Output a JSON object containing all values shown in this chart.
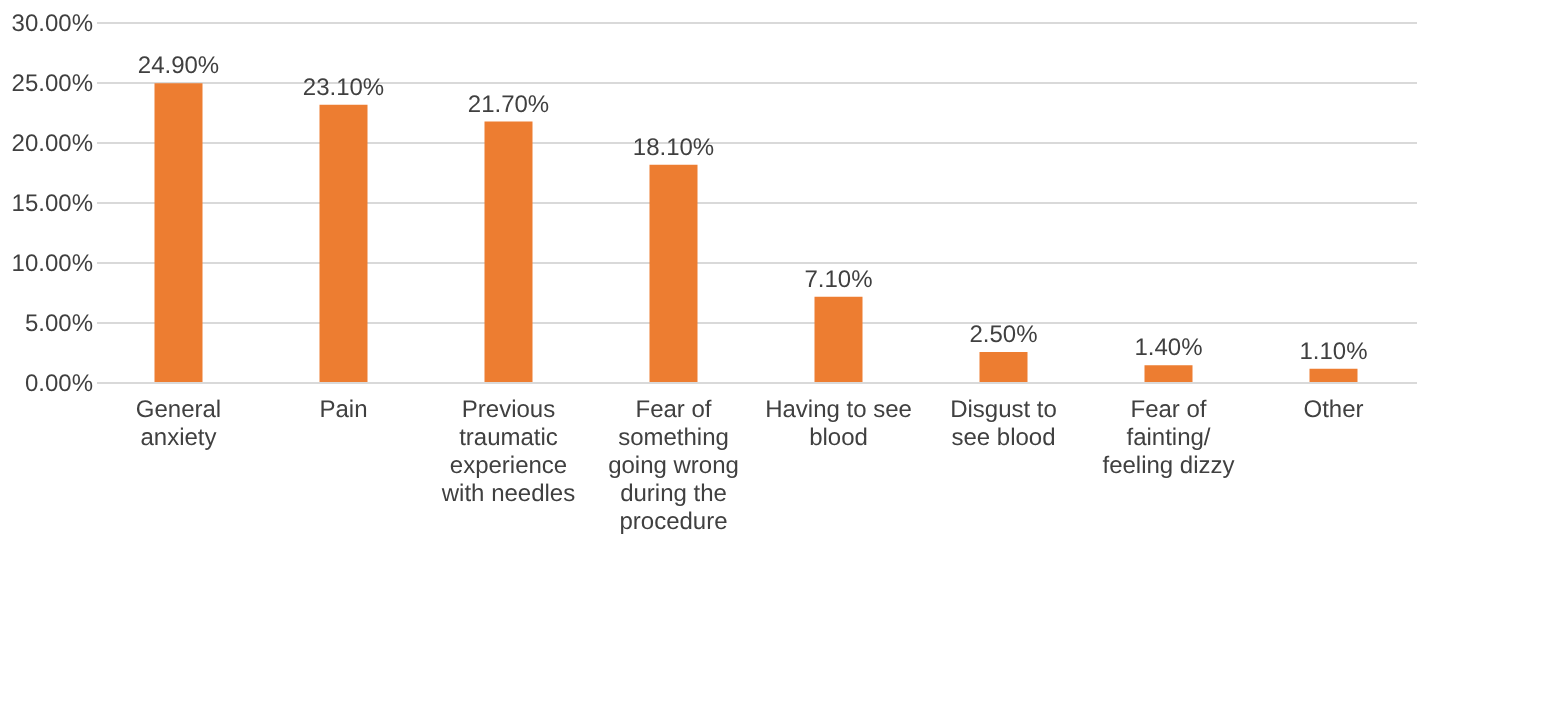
{
  "chart_data": {
    "type": "bar",
    "categories": [
      "General anxiety",
      "Pain",
      "Previous traumatic experience with needles",
      "Fear of something going wrong during the procedure",
      "Having to see blood",
      "Disgust to see blood",
      "Fear of fainting/ feeling dizzy",
      "Other"
    ],
    "values": [
      24.9,
      23.1,
      21.7,
      18.1,
      7.1,
      2.5,
      1.4,
      1.1
    ],
    "value_labels": [
      "24.90%",
      "23.10%",
      "21.70%",
      "18.10%",
      "7.10%",
      "2.50%",
      "1.40%",
      "1.10%"
    ],
    "color": "#ed7d31",
    "ylim": [
      0,
      30
    ],
    "yticks": [
      {
        "value": 0,
        "label": "0.00%"
      },
      {
        "value": 5,
        "label": "5.00%"
      },
      {
        "value": 10,
        "label": "10.00%"
      },
      {
        "value": 15,
        "label": "15.00%"
      },
      {
        "value": 20,
        "label": "20.00%"
      },
      {
        "value": 25,
        "label": "25.00%"
      },
      {
        "value": 30,
        "label": "30.00%"
      }
    ],
    "grid": "y"
  }
}
